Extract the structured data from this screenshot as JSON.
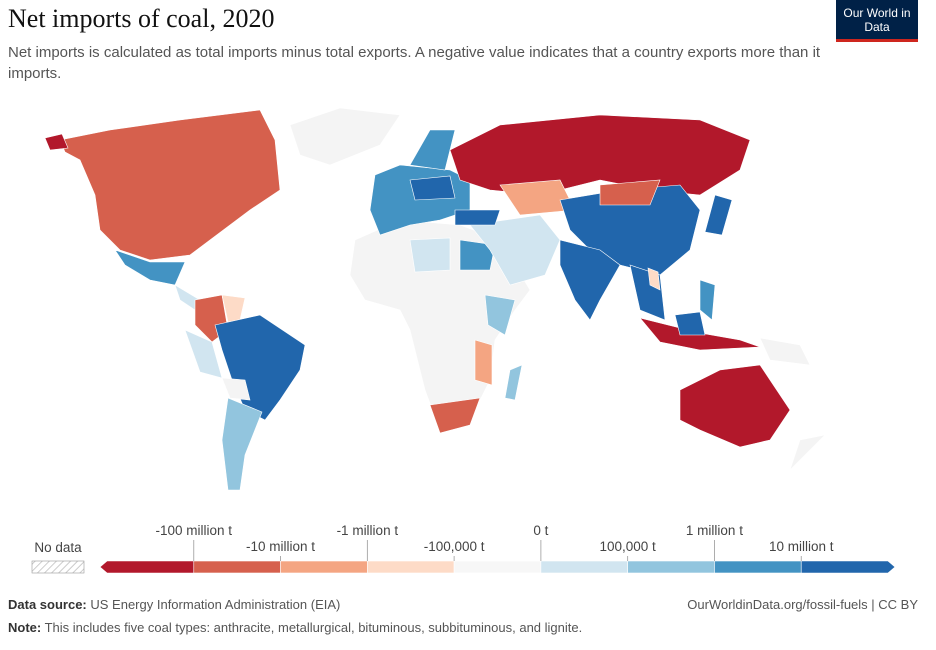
{
  "header": {
    "title": "Net imports of coal, 2020",
    "subtitle": "Net imports is calculated as total imports minus total exports. A negative value indicates that a country exports more than it imports.",
    "logo": "Our World in Data"
  },
  "legend": {
    "no_data": "No data",
    "colors": [
      "#b2182b",
      "#d6604d",
      "#f4a582",
      "#fddbc7",
      "#f7f7f7",
      "#d1e5f0",
      "#92c5de",
      "#4393c3",
      "#2166ac"
    ],
    "ticks": [
      "-100 million t",
      "-10 million t",
      "-1 million t",
      "-100,000 t",
      "0 t",
      "100,000 t",
      "1 million t",
      "10 million t"
    ]
  },
  "footer": {
    "source_label": "Data source:",
    "source": "US Energy Information Administration (EIA)",
    "url": "OurWorldinData.org/fossil-fuels | CC BY",
    "note_label": "Note:",
    "note": "This includes five coal types: anthracite, metallurgical, bituminous, subbituminous, and lignite."
  }
}
